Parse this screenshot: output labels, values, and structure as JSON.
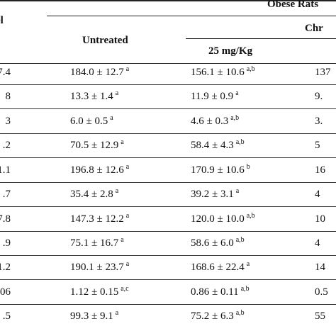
{
  "header": {
    "group_title": "Obese Rats",
    "left_fragment": "el",
    "untreated_label": "Untreated",
    "treated_fragment": "Chr",
    "dose_label": "25 mg/Kg"
  },
  "rows": [
    {
      "left": "7.4",
      "untreated": "184.0 ± 12.7",
      "untreated_sup": "a",
      "dose25": "156.1 ± 10.6",
      "dose25_sup": "a,b",
      "right": "137"
    },
    {
      "left": "8",
      "untreated": "13.3 ± 1.4",
      "untreated_sup": "a",
      "dose25": "11.9 ± 0.9",
      "dose25_sup": "a",
      "right": "9."
    },
    {
      "left": "3",
      "untreated": "6.0 ± 0.5",
      "untreated_sup": "a",
      "dose25": "4.6 ± 0.3",
      "dose25_sup": "a,b",
      "right": "3."
    },
    {
      "left": ".2",
      "untreated": "70.5 ± 12.9",
      "untreated_sup": "a",
      "dose25": "58.4 ± 4.3",
      "dose25_sup": "a,b",
      "right": "5"
    },
    {
      "left": "1.1",
      "untreated": "196.8 ± 12.6",
      "untreated_sup": "a",
      "dose25": "170.9 ± 10.6",
      "dose25_sup": "b",
      "right": "16"
    },
    {
      "left": ".7",
      "untreated": "35.4 ± 2.8",
      "untreated_sup": "a",
      "dose25": "39.2 ± 3.1",
      "dose25_sup": "a",
      "right": "4"
    },
    {
      "left": "7.8",
      "untreated": "147.3 ± 12.2",
      "untreated_sup": "a",
      "dose25": "120.0 ± 10.0",
      "dose25_sup": "a,b",
      "right": "10"
    },
    {
      "left": ".9",
      "untreated": "75.1 ± 16.7",
      "untreated_sup": "a",
      "dose25": "58.6 ± 6.0",
      "dose25_sup": "a,b",
      "right": "4"
    },
    {
      "left": "1.2",
      "untreated": "190.1 ± 23.7",
      "untreated_sup": "a",
      "dose25": "168.6 ± 22.4",
      "dose25_sup": "a",
      "right": "14"
    },
    {
      "left": "06",
      "untreated": "1.12 ± 0.15",
      "untreated_sup": "a,c",
      "dose25": "0.86 ± 0.11",
      "dose25_sup": "a,b",
      "right": "0.5"
    },
    {
      "left": ".5",
      "untreated": "99.3 ± 9.1",
      "untreated_sup": "a",
      "dose25": "75.2 ± 6.3",
      "dose25_sup": "a,b",
      "right": "55"
    }
  ]
}
